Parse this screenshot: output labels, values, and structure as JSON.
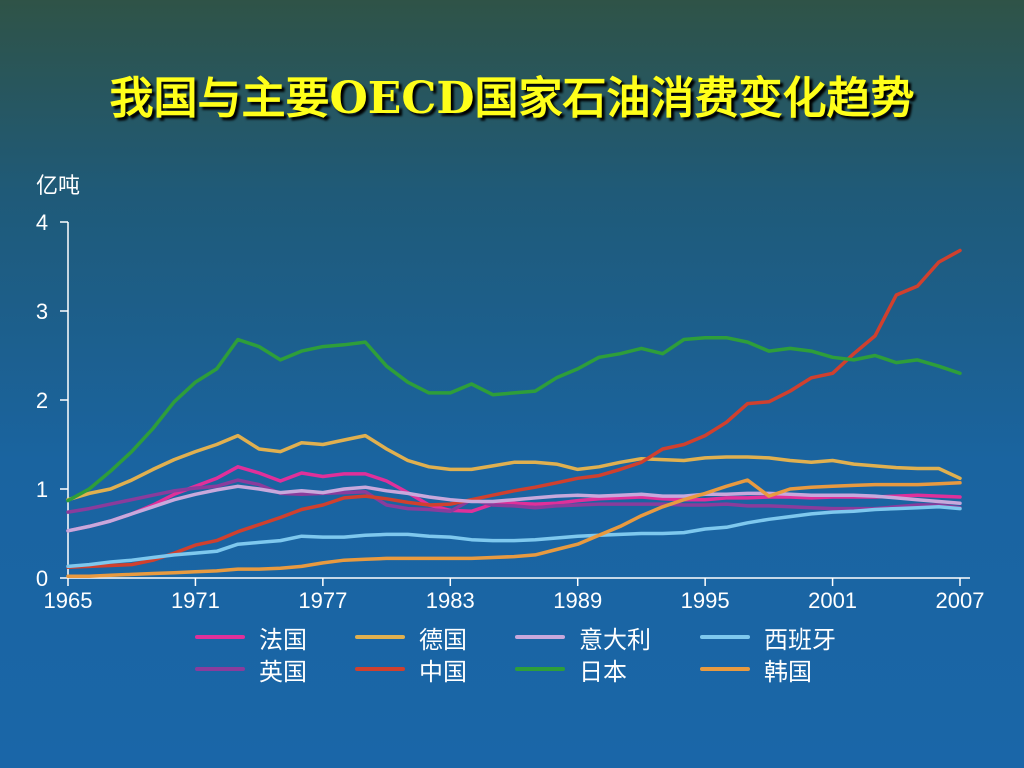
{
  "slide": {
    "title": "我国与主要OECD国家石油消费变化趋势"
  },
  "chart_data": {
    "type": "line",
    "title": "我国与主要OECD国家石油消费变化趋势",
    "ylabel": "亿吨",
    "xlabel": "",
    "xlim": [
      1965,
      2007
    ],
    "ylim": [
      0,
      4
    ],
    "x_ticks": [
      "1965",
      "1971",
      "1977",
      "1983",
      "1989",
      "1995",
      "2001",
      "2007"
    ],
    "y_ticks": [
      "0",
      "1",
      "2",
      "3",
      "4"
    ],
    "grid": false,
    "legend_position": "bottom",
    "x": [
      1965,
      1966,
      1967,
      1968,
      1969,
      1970,
      1971,
      1972,
      1973,
      1974,
      1975,
      1976,
      1977,
      1978,
      1979,
      1980,
      1981,
      1982,
      1983,
      1984,
      1985,
      1986,
      1987,
      1988,
      1989,
      1990,
      1991,
      1992,
      1993,
      1994,
      1995,
      1996,
      1997,
      1998,
      1999,
      2000,
      2001,
      2002,
      2003,
      2004,
      2005,
      2006,
      2007
    ],
    "series": [
      {
        "name": "法国",
        "color": "#e0309a",
        "values": [
          0.53,
          0.58,
          0.64,
          0.72,
          0.82,
          0.94,
          1.03,
          1.12,
          1.25,
          1.18,
          1.09,
          1.18,
          1.14,
          1.17,
          1.17,
          1.09,
          0.96,
          0.82,
          0.76,
          0.75,
          0.83,
          0.84,
          0.83,
          0.84,
          0.87,
          0.89,
          0.9,
          0.91,
          0.89,
          0.88,
          0.88,
          0.9,
          0.9,
          0.91,
          0.91,
          0.9,
          0.91,
          0.91,
          0.91,
          0.92,
          0.93,
          0.92,
          0.91
        ]
      },
      {
        "name": "英国",
        "color": "#8a3c9c",
        "values": [
          0.74,
          0.78,
          0.83,
          0.88,
          0.93,
          0.98,
          1.01,
          1.03,
          1.1,
          1.05,
          0.95,
          0.94,
          0.95,
          0.96,
          0.97,
          0.82,
          0.78,
          0.77,
          0.75,
          0.88,
          0.82,
          0.81,
          0.79,
          0.81,
          0.82,
          0.83,
          0.83,
          0.83,
          0.83,
          0.82,
          0.82,
          0.83,
          0.81,
          0.81,
          0.8,
          0.79,
          0.78,
          0.78,
          0.78,
          0.8,
          0.82,
          0.82,
          0.79
        ]
      },
      {
        "name": "德国",
        "color": "#e0b050",
        "values": [
          0.88,
          0.95,
          1.0,
          1.1,
          1.22,
          1.33,
          1.42,
          1.5,
          1.6,
          1.45,
          1.42,
          1.52,
          1.5,
          1.55,
          1.6,
          1.45,
          1.32,
          1.25,
          1.22,
          1.22,
          1.26,
          1.3,
          1.3,
          1.28,
          1.22,
          1.25,
          1.3,
          1.34,
          1.33,
          1.32,
          1.35,
          1.36,
          1.36,
          1.35,
          1.32,
          1.3,
          1.32,
          1.28,
          1.26,
          1.24,
          1.23,
          1.23,
          1.12
        ]
      },
      {
        "name": "中国",
        "color": "#d0402e",
        "values": [
          0.12,
          0.13,
          0.14,
          0.15,
          0.2,
          0.28,
          0.37,
          0.42,
          0.52,
          0.6,
          0.68,
          0.77,
          0.82,
          0.9,
          0.92,
          0.89,
          0.85,
          0.82,
          0.83,
          0.88,
          0.93,
          0.98,
          1.02,
          1.07,
          1.12,
          1.15,
          1.22,
          1.3,
          1.45,
          1.5,
          1.6,
          1.75,
          1.96,
          1.98,
          2.1,
          2.25,
          2.3,
          2.52,
          2.72,
          3.18,
          3.28,
          3.55,
          3.68
        ]
      },
      {
        "name": "意大利",
        "color": "#c8a8dc",
        "values": [
          0.53,
          0.58,
          0.64,
          0.72,
          0.8,
          0.88,
          0.94,
          0.99,
          1.03,
          1.0,
          0.96,
          0.98,
          0.96,
          1.0,
          1.02,
          0.98,
          0.95,
          0.91,
          0.88,
          0.86,
          0.86,
          0.88,
          0.9,
          0.92,
          0.93,
          0.92,
          0.93,
          0.94,
          0.92,
          0.92,
          0.94,
          0.94,
          0.95,
          0.95,
          0.94,
          0.93,
          0.93,
          0.93,
          0.92,
          0.9,
          0.88,
          0.86,
          0.84
        ]
      },
      {
        "name": "日本",
        "color": "#2e9e3a",
        "values": [
          0.87,
          1.0,
          1.2,
          1.42,
          1.68,
          1.98,
          2.2,
          2.35,
          2.68,
          2.6,
          2.45,
          2.55,
          2.6,
          2.62,
          2.65,
          2.38,
          2.2,
          2.08,
          2.08,
          2.18,
          2.06,
          2.08,
          2.1,
          2.25,
          2.35,
          2.48,
          2.52,
          2.58,
          2.52,
          2.68,
          2.7,
          2.7,
          2.65,
          2.55,
          2.58,
          2.55,
          2.48,
          2.45,
          2.5,
          2.42,
          2.45,
          2.38,
          2.3
        ]
      },
      {
        "name": "西班牙",
        "color": "#7ec8ee",
        "values": [
          0.13,
          0.15,
          0.18,
          0.2,
          0.23,
          0.26,
          0.28,
          0.3,
          0.38,
          0.4,
          0.42,
          0.47,
          0.46,
          0.46,
          0.48,
          0.49,
          0.49,
          0.47,
          0.46,
          0.43,
          0.42,
          0.42,
          0.43,
          0.45,
          0.47,
          0.48,
          0.49,
          0.5,
          0.5,
          0.51,
          0.55,
          0.57,
          0.62,
          0.66,
          0.69,
          0.72,
          0.74,
          0.75,
          0.77,
          0.78,
          0.79,
          0.8,
          0.78
        ]
      },
      {
        "name": "韩国",
        "color": "#e89a40",
        "values": [
          0.02,
          0.02,
          0.03,
          0.04,
          0.05,
          0.06,
          0.07,
          0.08,
          0.1,
          0.1,
          0.11,
          0.13,
          0.17,
          0.2,
          0.21,
          0.22,
          0.22,
          0.22,
          0.22,
          0.22,
          0.23,
          0.24,
          0.26,
          0.32,
          0.38,
          0.48,
          0.58,
          0.7,
          0.8,
          0.88,
          0.95,
          1.03,
          1.1,
          0.92,
          1.0,
          1.02,
          1.03,
          1.04,
          1.05,
          1.05,
          1.05,
          1.06,
          1.07
        ]
      }
    ]
  },
  "legend": {
    "items": [
      {
        "label": "法国",
        "color": "#e0309a",
        "col": 0,
        "row": 0
      },
      {
        "label": "德国",
        "color": "#e0b050",
        "col": 1,
        "row": 0
      },
      {
        "label": "意大利",
        "color": "#c8a8dc",
        "col": 2,
        "row": 0
      },
      {
        "label": "西班牙",
        "color": "#7ec8ee",
        "col": 3,
        "row": 0
      },
      {
        "label": "英国",
        "color": "#8a3c9c",
        "col": 0,
        "row": 1
      },
      {
        "label": "中国",
        "color": "#d0402e",
        "col": 1,
        "row": 1
      },
      {
        "label": "日本",
        "color": "#2e9e3a",
        "col": 2,
        "row": 1
      },
      {
        "label": "韩国",
        "color": "#e89a40",
        "col": 3,
        "row": 1
      }
    ]
  }
}
